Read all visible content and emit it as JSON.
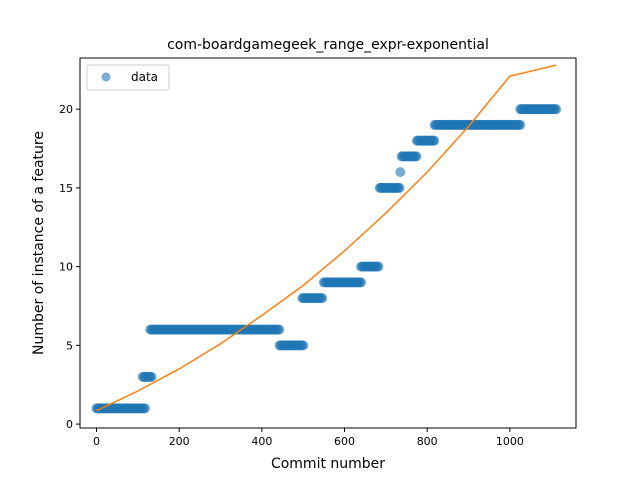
{
  "chart_data": {
    "type": "scatter",
    "title": "com-boardgamegeek_range_expr-exponential",
    "xlabel": "Commit number",
    "ylabel": "Number of instance of a feature",
    "xlim": [
      -40,
      1160
    ],
    "ylim": [
      -0.25,
      23.25
    ],
    "xticks": [
      0,
      200,
      400,
      600,
      800,
      1000
    ],
    "yticks": [
      0,
      5,
      10,
      15,
      20
    ],
    "grid": false,
    "legend": {
      "position": "top-left",
      "entries": [
        "data"
      ]
    },
    "colors": {
      "data": "#1f77b4",
      "fit": "#ff7f0e"
    },
    "series": [
      {
        "name": "data",
        "kind": "points",
        "segments": [
          {
            "x_start": 0,
            "x_end": 118,
            "y": 1
          },
          {
            "x_start": 112,
            "x_end": 135,
            "y": 3
          },
          {
            "x_start": 130,
            "x_end": 442,
            "y": 6
          },
          {
            "x_start": 443,
            "x_end": 500,
            "y": 5
          },
          {
            "x_start": 498,
            "x_end": 548,
            "y": 8
          },
          {
            "x_start": 550,
            "x_end": 642,
            "y": 9
          },
          {
            "x_start": 640,
            "x_end": 684,
            "y": 10
          },
          {
            "x_start": 685,
            "x_end": 735,
            "y": 15
          },
          {
            "x_start": 735,
            "x_end": 737,
            "y": 16
          },
          {
            "x_start": 738,
            "x_end": 775,
            "y": 17
          },
          {
            "x_start": 775,
            "x_end": 818,
            "y": 18
          },
          {
            "x_start": 818,
            "x_end": 1025,
            "y": 19
          },
          {
            "x_start": 1025,
            "x_end": 1112,
            "y": 20
          }
        ]
      },
      {
        "kind": "line",
        "x": [
          0,
          100,
          200,
          300,
          400,
          500,
          600,
          700,
          800,
          900,
          1000,
          1112
        ],
        "y": [
          0.85,
          2.1,
          3.5,
          5.1,
          6.9,
          8.8,
          11.0,
          13.4,
          16.0,
          18.9,
          22.1,
          22.8
        ]
      }
    ]
  }
}
